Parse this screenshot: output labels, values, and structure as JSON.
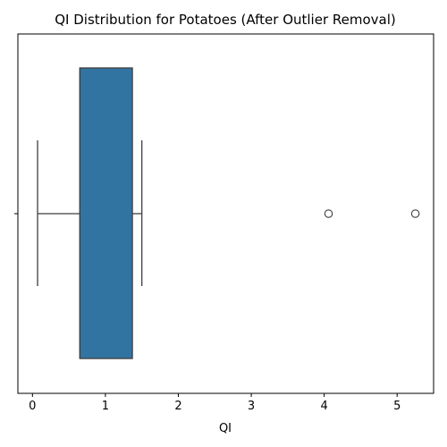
{
  "chart_data": {
    "type": "boxplot",
    "orientation": "horizontal",
    "title": "QI Distribution for Potatoes (After Outlier Removal)",
    "xlabel": "QI",
    "ylabel": "",
    "xlim": [
      -0.2,
      5.5
    ],
    "xticks": [
      0,
      1,
      2,
      3,
      4,
      5
    ],
    "xtick_labels": [
      "0",
      "1",
      "2",
      "3",
      "4",
      "5"
    ],
    "grid": false,
    "box": {
      "whisker_low": 0.07,
      "q1": 0.65,
      "median": 0.65,
      "q3": 1.37,
      "whisker_high": 1.5,
      "outliers": [
        4.06,
        5.25
      ]
    },
    "colors": {
      "box_fill": "#3274a1",
      "line": "#3f3f3f"
    }
  }
}
